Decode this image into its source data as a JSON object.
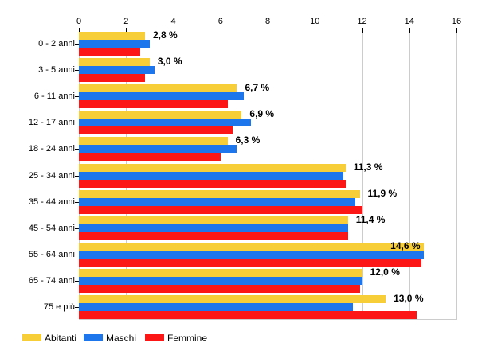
{
  "chart_data": {
    "type": "bar",
    "orientation": "horizontal",
    "title": "",
    "xlabel": "",
    "ylabel": "",
    "xlim": [
      0,
      16
    ],
    "x_ticks": [
      "0",
      "2",
      "4",
      "6",
      "8",
      "10",
      "12",
      "14",
      "16"
    ],
    "grid": true,
    "legend_position": "bottom",
    "categories": [
      "0 - 2 anni",
      "3 - 5 anni",
      "6 - 11 anni",
      "12 - 17 anni",
      "18 - 24 anni",
      "25 - 34 anni",
      "35 - 44 anni",
      "45 - 54 anni",
      "55 - 64 anni",
      "65 - 74 anni",
      "75 e più"
    ],
    "series": [
      {
        "name": "Abitanti",
        "color": "#F8CE38",
        "values": [
          2.8,
          3.0,
          6.7,
          6.9,
          6.3,
          11.3,
          11.9,
          11.4,
          14.6,
          12.0,
          13.0
        ]
      },
      {
        "name": "Maschi",
        "color": "#1E76EC",
        "values": [
          3.0,
          3.2,
          7.0,
          7.3,
          6.7,
          11.2,
          11.7,
          11.4,
          14.6,
          12.0,
          11.6
        ]
      },
      {
        "name": "Femmine",
        "color": "#FC1616",
        "values": [
          2.6,
          2.8,
          6.3,
          6.5,
          6.0,
          11.3,
          12.0,
          11.4,
          14.5,
          11.9,
          14.3
        ]
      }
    ],
    "value_labels": [
      "2,8 %",
      "3,0 %",
      "6,7 %",
      "6,9 %",
      "6,3 %",
      "11,3 %",
      "11,9 %",
      "11,4 %",
      "14,6 %",
      "12,0 %",
      "13,0 %"
    ]
  },
  "colors": {
    "background": "#ffffff",
    "gridline": "#cccccc",
    "axis_text": "#000000",
    "value_label_text": "#000000",
    "abitanti": "#F8CE38",
    "maschi": "#1E76EC",
    "femmine": "#FC1616"
  },
  "legend": {
    "items": [
      {
        "label": "Abitanti",
        "color": "#F8CE38"
      },
      {
        "label": "Maschi",
        "color": "#1E76EC"
      },
      {
        "label": "Femmine",
        "color": "#FC1616"
      }
    ]
  }
}
